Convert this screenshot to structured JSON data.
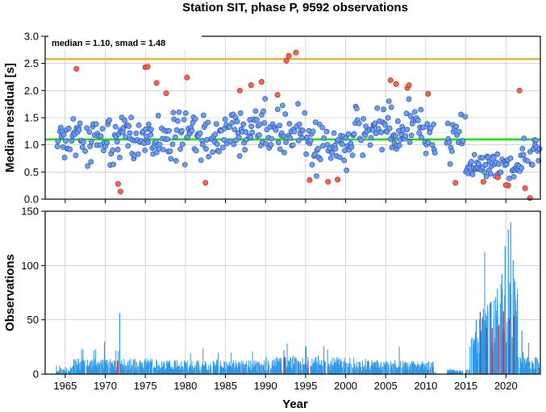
{
  "figure": {
    "title": "Station SIT, phase P, 9592 observations",
    "stats_label": "median = 1.10, smad = 1.48"
  },
  "colors": {
    "frame": "#000000",
    "grid": "#bbbbbb",
    "median_line": "#22dd11",
    "upper_line": "#f0a830",
    "point_fill": "#6b9df0",
    "point_edge": "#2244aa",
    "outlier_fill": "#f06655",
    "outlier_edge": "#aa2211",
    "bar_fill": "#2e97e8",
    "bar_highlight": "#dd2222"
  },
  "chart_data": [
    {
      "type": "scatter",
      "ylabel": "Median residual [s]",
      "xlim": [
        1962.5,
        2024.3
      ],
      "ylim": [
        0,
        3
      ],
      "x_ticks": [
        1965,
        1970,
        1975,
        1980,
        1985,
        1990,
        1995,
        2000,
        2005,
        2010,
        2015,
        2020
      ],
      "y_ticks": [
        0.0,
        0.5,
        1.0,
        1.5,
        2.0,
        2.5,
        3.0
      ],
      "y_tick_labels": [
        "0.0",
        "0.5",
        "1.0",
        "1.5",
        "2.0",
        "2.5",
        "3.0"
      ],
      "grid": true,
      "median": 1.1,
      "upper_threshold": 2.58,
      "outliers": [
        [
          1966.4,
          2.4
        ],
        [
          1971.6,
          0.28
        ],
        [
          1971.9,
          0.14
        ],
        [
          1975.0,
          2.43
        ],
        [
          1975.3,
          2.44
        ],
        [
          1976.4,
          2.14
        ],
        [
          1977.6,
          1.95
        ],
        [
          1980.2,
          2.24
        ],
        [
          1982.5,
          0.3
        ],
        [
          1986.8,
          2.0
        ],
        [
          1988.2,
          2.1
        ],
        [
          1989.5,
          2.16
        ],
        [
          1992.6,
          2.55
        ],
        [
          1992.9,
          2.64
        ],
        [
          1993.8,
          2.7
        ],
        [
          1991.5,
          1.92
        ],
        [
          1995.5,
          0.35
        ],
        [
          1997.8,
          0.32
        ],
        [
          1999.0,
          0.36
        ],
        [
          2005.6,
          2.19
        ],
        [
          2006.3,
          2.12
        ],
        [
          2007.7,
          2.05
        ],
        [
          2007.9,
          2.1
        ],
        [
          2010.3,
          1.94
        ],
        [
          2013.7,
          0.3
        ],
        [
          2017.2,
          0.32
        ],
        [
          2019.0,
          0.4
        ],
        [
          2020.3,
          0.25
        ],
        [
          2021.7,
          2.0
        ],
        [
          2022.4,
          0.2
        ],
        [
          2023.0,
          0.02
        ],
        [
          2020.0,
          0.26
        ]
      ],
      "series_note": "dense blue markers: monthly median residuals 1964-2024, mostly 0.3-1.9 s"
    },
    {
      "type": "bar",
      "xlabel": "Year",
      "ylabel": "Observations",
      "xlim": [
        1962.5,
        2024.3
      ],
      "ylim": [
        0,
        150
      ],
      "x_ticks": [
        1965,
        1970,
        1975,
        1980,
        1985,
        1990,
        1995,
        2000,
        2005,
        2010,
        2015,
        2020
      ],
      "y_ticks": [
        0,
        50,
        100,
        150
      ],
      "grid": true,
      "peaks": [
        [
          1971.8,
          56
        ],
        [
          1969.9,
          30
        ],
        [
          1992.3,
          22
        ],
        [
          1995.0,
          26
        ],
        [
          2016.3,
          50
        ],
        [
          2017.2,
          60
        ],
        [
          2018.0,
          65
        ],
        [
          2019.5,
          92
        ],
        [
          2019.9,
          118
        ],
        [
          2020.3,
          133
        ],
        [
          2020.6,
          140
        ],
        [
          2020.9,
          105
        ],
        [
          2021.2,
          68
        ],
        [
          2022.0,
          40
        ],
        [
          2023.4,
          8
        ]
      ]
    }
  ]
}
